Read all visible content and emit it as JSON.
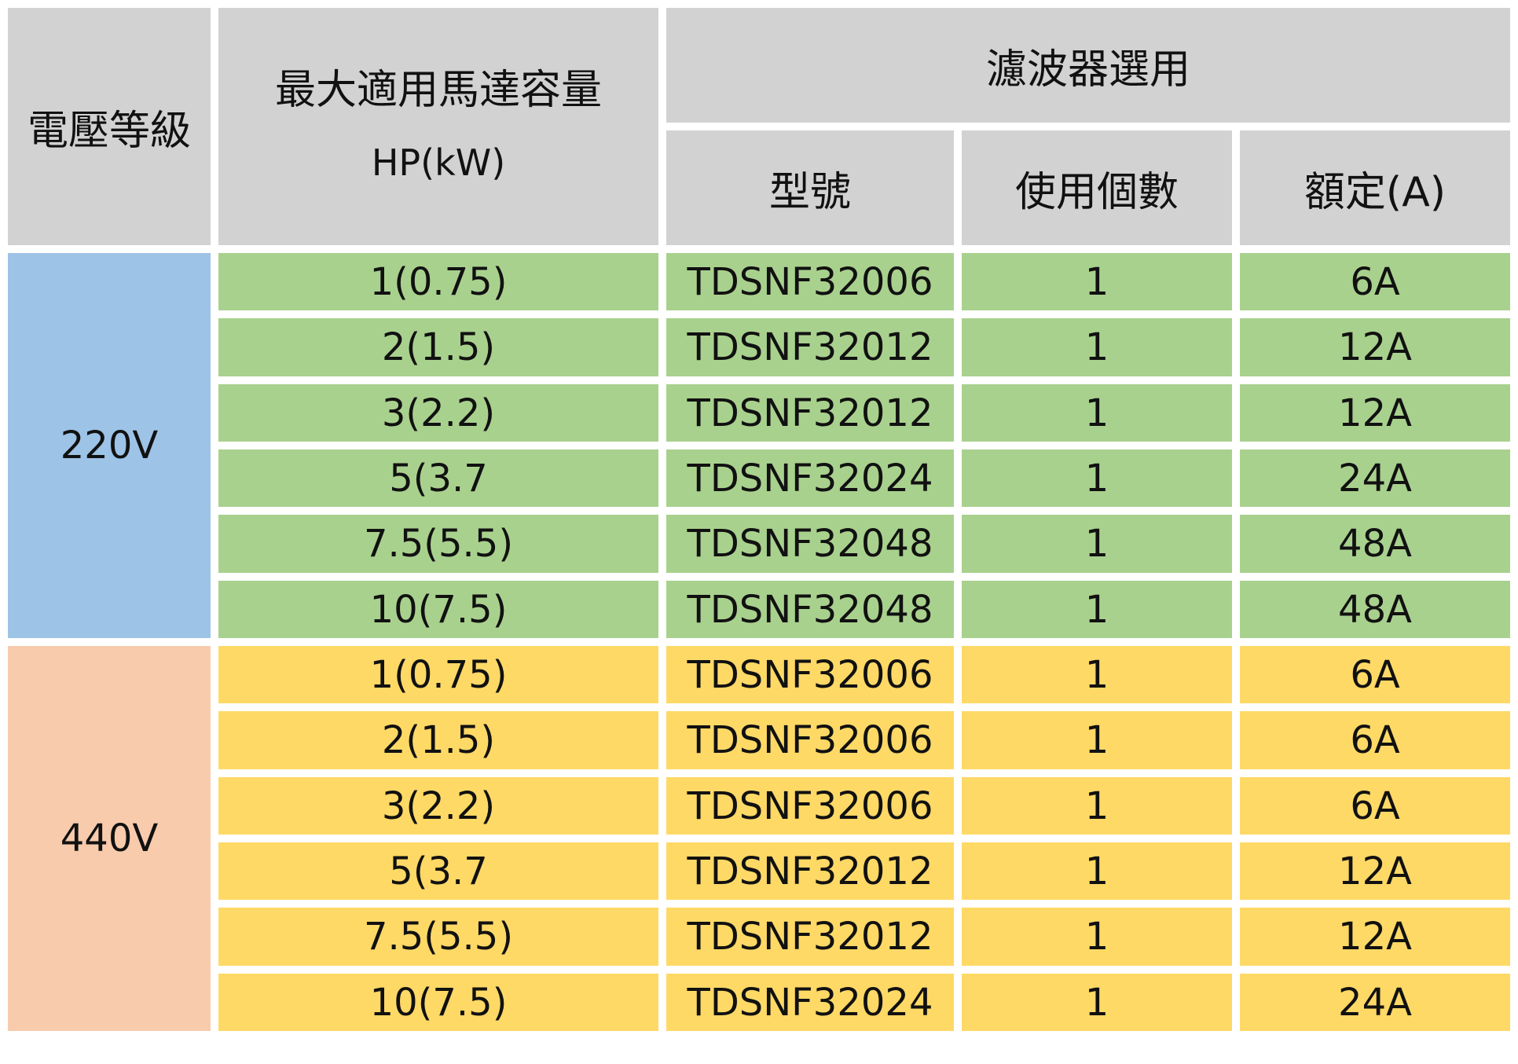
{
  "colors": {
    "header_bg": "#d3d2d3",
    "volt_220_bg": "#9dc3e6",
    "row_220_bg": "#a9d18e",
    "volt_440_bg": "#f8cbad",
    "row_440_bg": "#ffd966"
  },
  "header": {
    "voltage_class": "電壓等級",
    "max_motor_capacity": "最大適用馬達容量",
    "hp_kw": "HP(kW)",
    "filter_selection": "濾波器選用",
    "model": "型號",
    "quantity": "使用個數",
    "rating": "額定(A)"
  },
  "groups": [
    {
      "voltage": "220V",
      "rows": [
        {
          "hp": "1(0.75)",
          "model": "TDSNF32006",
          "qty": "1",
          "rating": "6A"
        },
        {
          "hp": "2(1.5)",
          "model": "TDSNF32012",
          "qty": "1",
          "rating": "12A"
        },
        {
          "hp": "3(2.2)",
          "model": "TDSNF32012",
          "qty": "1",
          "rating": "12A"
        },
        {
          "hp": "5(3.7",
          "model": "TDSNF32024",
          "qty": "1",
          "rating": "24A"
        },
        {
          "hp": "7.5(5.5)",
          "model": "TDSNF32048",
          "qty": "1",
          "rating": "48A"
        },
        {
          "hp": "10(7.5)",
          "model": "TDSNF32048",
          "qty": "1",
          "rating": "48A"
        }
      ]
    },
    {
      "voltage": "440V",
      "rows": [
        {
          "hp": "1(0.75)",
          "model": "TDSNF32006",
          "qty": "1",
          "rating": "6A"
        },
        {
          "hp": "2(1.5)",
          "model": "TDSNF32006",
          "qty": "1",
          "rating": "6A"
        },
        {
          "hp": "3(2.2)",
          "model": "TDSNF32006",
          "qty": "1",
          "rating": "6A"
        },
        {
          "hp": "5(3.7",
          "model": "TDSNF32012",
          "qty": "1",
          "rating": "12A"
        },
        {
          "hp": "7.5(5.5)",
          "model": "TDSNF32012",
          "qty": "1",
          "rating": "12A"
        },
        {
          "hp": "10(7.5)",
          "model": "TDSNF32024",
          "qty": "1",
          "rating": "24A"
        }
      ]
    }
  ]
}
